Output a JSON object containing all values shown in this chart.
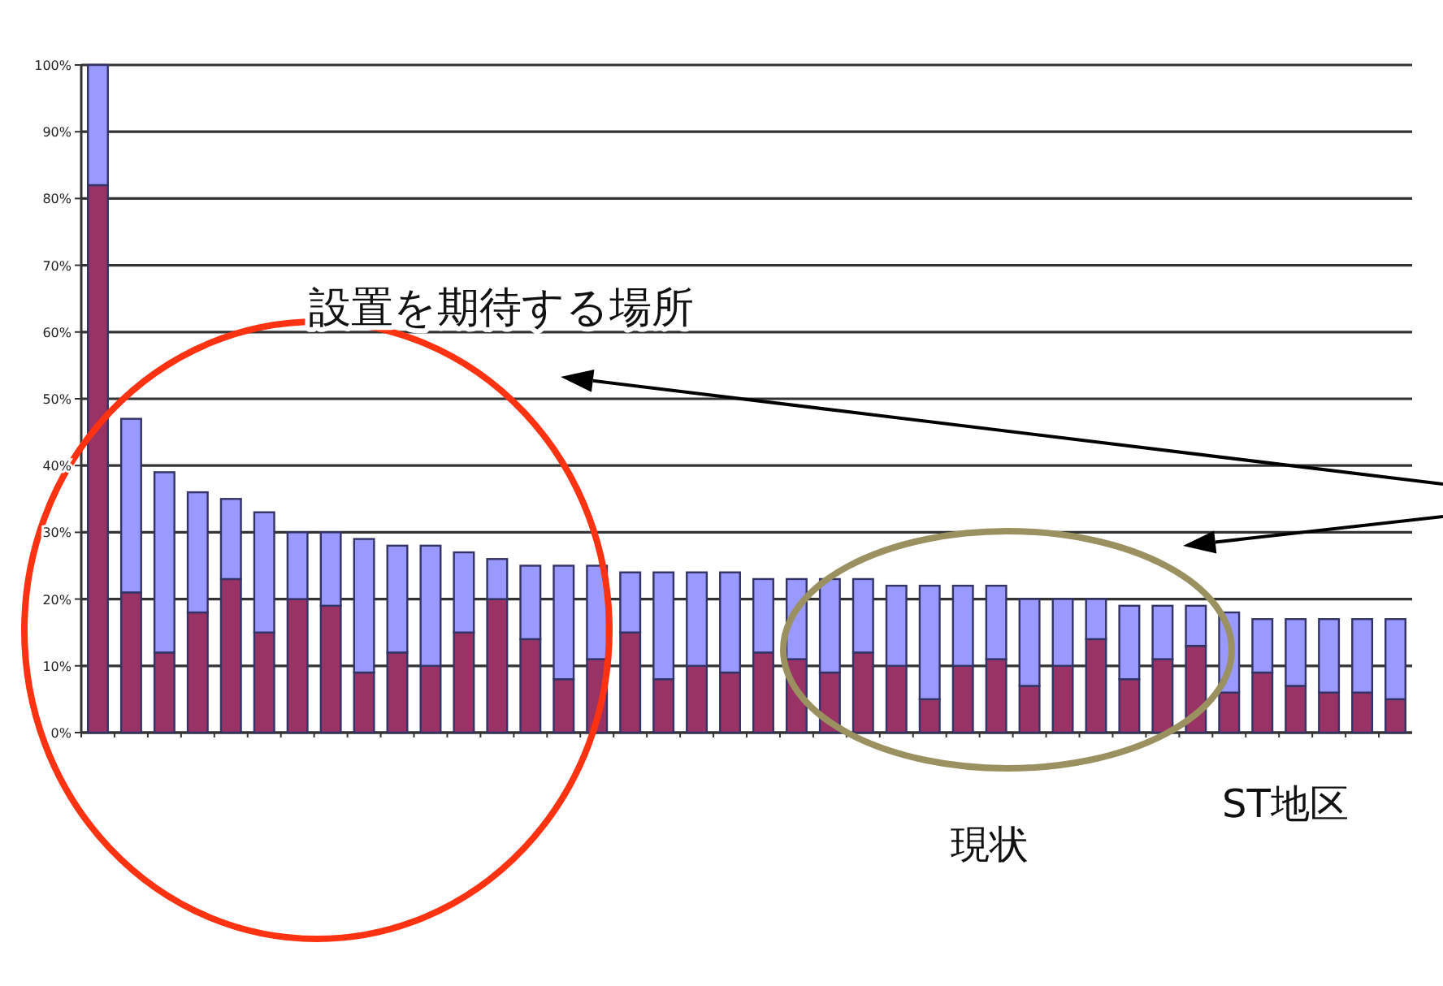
{
  "chart_data": {
    "type": "bar",
    "stacked": true,
    "categories": [
      null,
      null,
      null,
      null,
      null,
      null,
      null,
      null,
      null,
      null,
      null,
      null,
      null,
      null,
      null,
      null,
      null,
      null,
      null,
      null,
      null,
      null,
      null,
      null,
      null,
      null,
      null,
      null,
      null,
      null,
      null,
      null,
      null,
      null,
      null,
      null,
      null,
      null,
      null,
      null
    ],
    "series": [
      {
        "color": "#993366",
        "values": [
          82,
          21,
          12,
          18,
          23,
          15,
          20,
          19,
          9,
          12,
          10,
          15,
          20,
          14,
          8,
          11,
          15,
          8,
          10,
          9,
          12,
          11,
          9,
          12,
          10,
          5,
          10,
          11,
          7,
          10,
          14,
          8,
          11,
          13,
          6,
          9,
          7,
          6,
          6,
          5
        ]
      },
      {
        "color": "#9999ff",
        "values": [
          18,
          26,
          27,
          18,
          12,
          18,
          10,
          11,
          20,
          16,
          18,
          12,
          6,
          11,
          17,
          14,
          9,
          16,
          14,
          15,
          11,
          12,
          14,
          11,
          12,
          17,
          12,
          11,
          13,
          10,
          6,
          11,
          8,
          6,
          12,
          8,
          10,
          11,
          11,
          12
        ]
      }
    ],
    "ylim": [
      0,
      100
    ],
    "yticks": [
      {
        "value": 0,
        "label": "0%"
      },
      {
        "value": 10,
        "label": "10%"
      },
      {
        "value": 20,
        "label": "20%"
      },
      {
        "value": 30,
        "label": "30%"
      },
      {
        "value": 40,
        "label": "40%"
      },
      {
        "value": 50,
        "label": "50%"
      },
      {
        "value": 60,
        "label": "60%"
      },
      {
        "value": 70,
        "label": "70%"
      },
      {
        "value": 80,
        "label": "80%"
      },
      {
        "value": 90,
        "label": "90%"
      },
      {
        "value": 100,
        "label": "100%"
      }
    ],
    "grid": "y",
    "annotations": [
      "設置を期待する場所",
      "現状",
      "ST地区"
    ]
  }
}
